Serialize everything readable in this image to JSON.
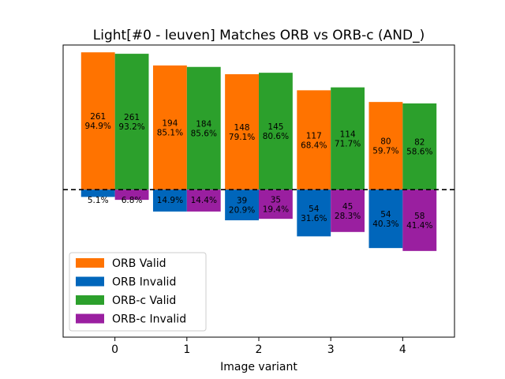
{
  "chart_data": {
    "type": "bar",
    "title": "Light[#0 - leuven] Matches ORB vs ORB-c (AND_)",
    "xlabel": "Image variant",
    "ylabel": "",
    "categories": [
      "0",
      "1",
      "2",
      "3",
      "4"
    ],
    "xlim": [
      -0.72,
      4.72
    ],
    "ylim": [
      -0.505,
      0.495
    ],
    "grid": false,
    "legend_position": "bottom-left",
    "zero_line": "dashed",
    "series": [
      {
        "name": "ORB Valid",
        "color": "#ff7300",
        "offset": -0.235,
        "values": [
          0.47,
          0.425,
          0.395,
          0.34,
          0.3
        ],
        "counts": [
          "261",
          "194",
          "148",
          "117",
          "80"
        ],
        "percents": [
          "94.9%",
          "85.1%",
          "79.1%",
          "68.4%",
          "59.7%"
        ]
      },
      {
        "name": "ORB Invalid",
        "color": "#0066bb",
        "offset": -0.235,
        "values": [
          -0.025,
          -0.075,
          -0.105,
          -0.16,
          -0.2
        ],
        "counts": [
          "",
          "",
          "39",
          "54",
          "54"
        ],
        "percents": [
          "5.1%",
          "14.9%",
          "20.9%",
          "31.6%",
          "40.3%"
        ]
      },
      {
        "name": "ORB-c Valid",
        "color": "#2ca02c",
        "offset": 0.235,
        "values": [
          0.465,
          0.42,
          0.4,
          0.35,
          0.295
        ],
        "counts": [
          "261",
          "184",
          "145",
          "114",
          "82"
        ],
        "percents": [
          "93.2%",
          "85.6%",
          "80.6%",
          "71.7%",
          "58.6%"
        ]
      },
      {
        "name": "ORB-c Invalid",
        "color": "#9a1fa0",
        "offset": 0.235,
        "values": [
          -0.035,
          -0.075,
          -0.1,
          -0.145,
          -0.21
        ],
        "counts": [
          "",
          "",
          "35",
          "45",
          "58"
        ],
        "percents": [
          "6.8%",
          "14.4%",
          "19.4%",
          "28.3%",
          "41.4%"
        ]
      }
    ]
  }
}
